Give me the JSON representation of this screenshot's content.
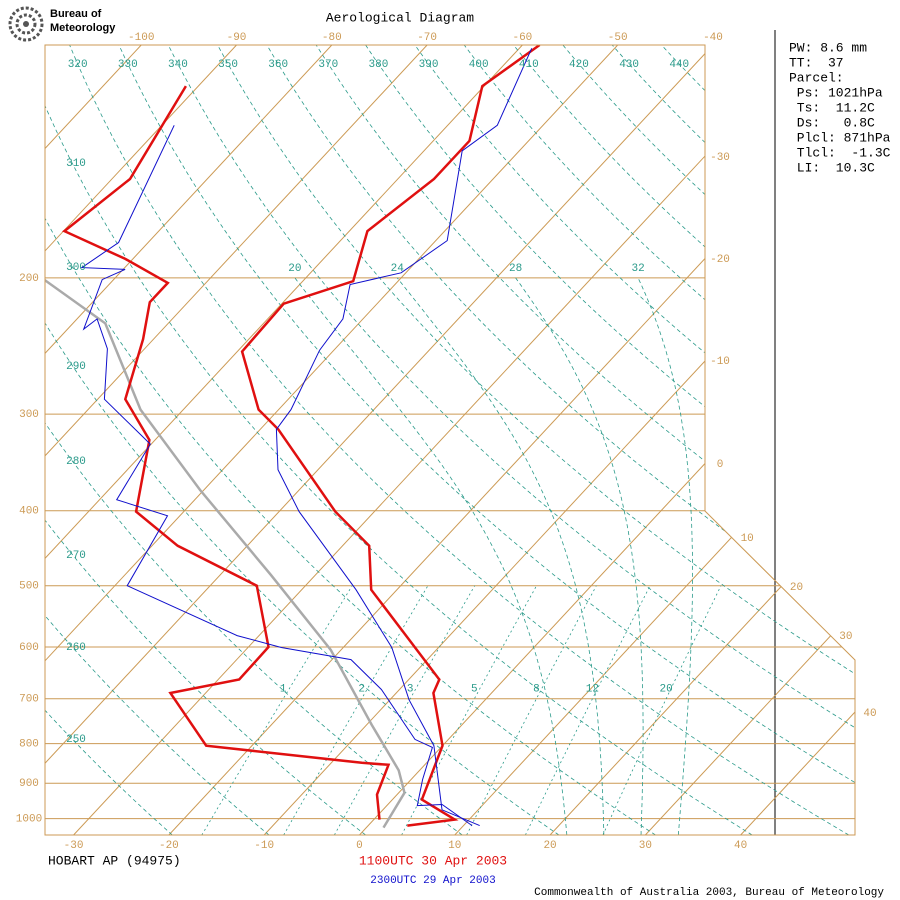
{
  "chart_data": {
    "type": "skew-t",
    "title": "Aerological Diagram",
    "logo_lines": [
      "Bureau of",
      "Meteorology"
    ],
    "station": "HOBART AP (94975)",
    "footer": "Commonwealth of Australia 2003, Bureau of Meteorology",
    "log_y": true,
    "ylim": [
      1050,
      100
    ],
    "yticks": [
      1000,
      900,
      800,
      700,
      600,
      500,
      400,
      300,
      200
    ],
    "xlim": [
      -33,
      52
    ],
    "xticks": [
      -30,
      -20,
      -10,
      0,
      10,
      20,
      30,
      40
    ],
    "isotherms": [
      -100,
      -90,
      -80,
      -70,
      -60,
      -50,
      -40,
      -30,
      -20,
      -10,
      0,
      10,
      20,
      30,
      40
    ],
    "dry_adiabats": [
      250,
      260,
      270,
      280,
      290,
      300,
      310,
      320,
      330,
      340,
      350,
      360,
      370,
      380,
      390,
      400,
      410,
      420,
      430,
      440
    ],
    "moist_adiabats": [
      20,
      24,
      28,
      32
    ],
    "mixing_ratios": [
      1,
      2,
      3,
      5,
      8,
      12,
      20
    ],
    "frame_color": "#cc9a55",
    "adiabat_color": "#2a9a8a",
    "soundings": [
      {
        "name": "1100UTC 30 Apr 2003",
        "color": "#e01010",
        "temperature_pressure": [
          1021,
          1003,
          945,
          805,
          688,
          661,
          506,
          444,
          401,
          314,
          296,
          249,
          216,
          202,
          174,
          149,
          133,
          113,
          100
        ],
        "temperature": [
          4.1,
          8.5,
          3.1,
          0.0,
          -6.1,
          -6.8,
          -22.7,
          -27.2,
          -34.1,
          -48.1,
          -52.1,
          -59.5,
          -59.8,
          -54.7,
          -58.1,
          -56.2,
          -56.2,
          -60.2,
          -58.2
        ],
        "dewpoint_pressure": [
          1003,
          931,
          852,
          847,
          805,
          688,
          661,
          600,
          500,
          444,
          401,
          324,
          287,
          240,
          215,
          203,
          189,
          174,
          149,
          113
        ],
        "dewpoint": [
          0.6,
          -2.1,
          -3.8,
          -6.8,
          -24.8,
          -33.7,
          -27.8,
          -27.9,
          -35.1,
          -47.3,
          -55.0,
          -60.6,
          -67.1,
          -71.1,
          -74.0,
          -74.0,
          -80.8,
          -89.9,
          -88.1,
          -91.3
        ]
      },
      {
        "name": "2300UTC 29 Apr 2003",
        "color": "#1010cc",
        "temperature_pressure": [
          1021,
          974,
          805,
          702,
          601,
          506,
          401,
          354,
          314,
          296,
          248,
          226,
          204,
          197,
          179,
          137,
          127,
          101
        ],
        "temperature": [
          11.7,
          6.2,
          -0.9,
          -8.0,
          -14.9,
          -24.3,
          -37.9,
          -44.2,
          -48.3,
          -48.7,
          -51.5,
          -52.1,
          -54.7,
          -50.5,
          -48.8,
          -56.0,
          -54.8,
          -58.7
        ],
        "dewpoint_pressure": [
          1021,
          959,
          962,
          890,
          809,
          790,
          681,
          623,
          601,
          580,
          500,
          406,
          387,
          328,
          287,
          247,
          226,
          233,
          201,
          195,
          194,
          180,
          127
        ],
        "dewpoint": [
          10.9,
          5.7,
          3.2,
          1.2,
          -0.9,
          -3.5,
          -11.9,
          -18.0,
          -26.5,
          -32.3,
          -48.7,
          -51.3,
          -58.2,
          -60.1,
          -69.3,
          -73.9,
          -77.9,
          -78.3,
          -81.2,
          -79.8,
          -84.5,
          -83.1,
          -88.7
        ]
      }
    ],
    "parcel": {
      "color": "#aaaaaa",
      "pressure": [
        1027,
        926,
        866,
        756,
        605,
        484,
        376,
        296,
        229,
        201
      ],
      "temperature": [
        1.8,
        0.6,
        -2.2,
        -9.5,
        -21.1,
        -34.7,
        -50.4,
        -64.5,
        -76.6,
        -87.3
      ]
    },
    "info": [
      "PW: 8.6 mm",
      "TT:  37",
      "Parcel:",
      " Ps: 1021hPa",
      " Ts:  11.2C",
      " Ds:   0.8C",
      " Plcl: 871hPa",
      " Tlcl:  -1.3C",
      " LI:  10.3C"
    ]
  }
}
